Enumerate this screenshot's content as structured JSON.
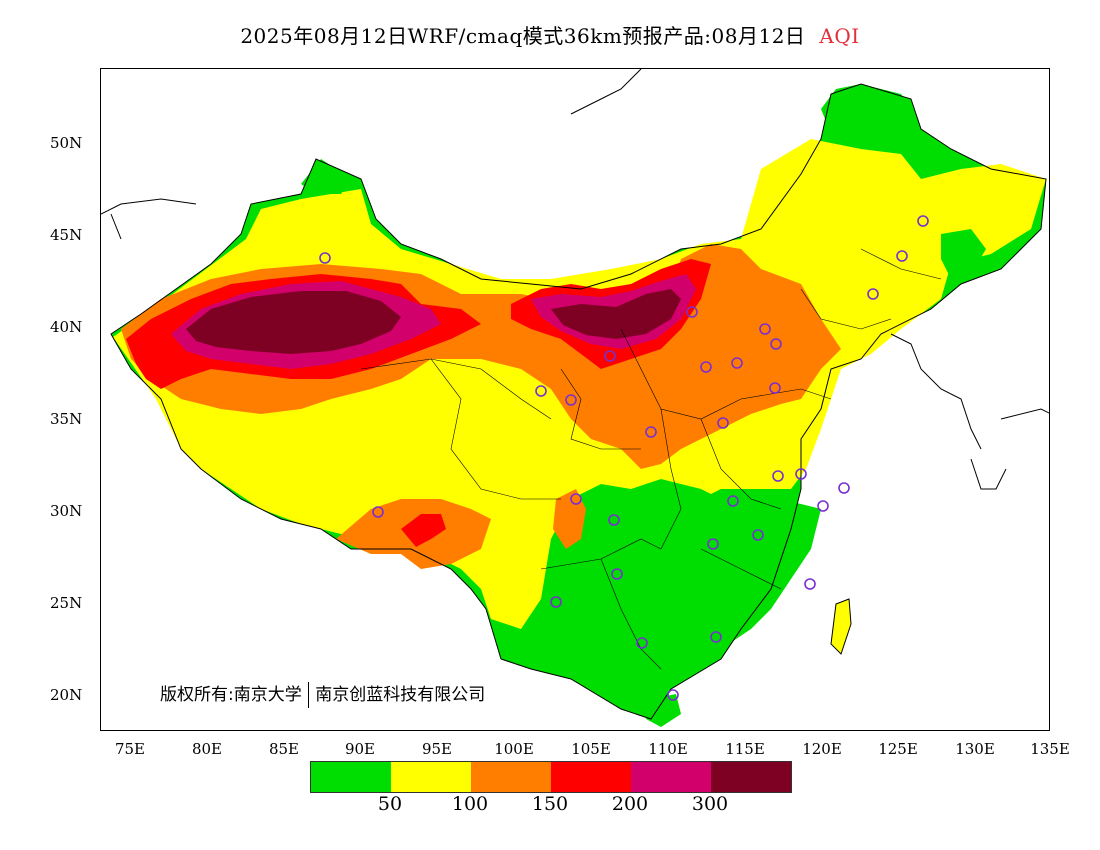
{
  "title": {
    "main": "2025年08月12日WRF/cmaq模式36km预报产品:08月12日",
    "variable": "AQI"
  },
  "map": {
    "lat_ticks": [
      "50N",
      "45N",
      "40N",
      "35N",
      "30N",
      "25N",
      "20N"
    ],
    "lon_ticks": [
      "75E",
      "80E",
      "85E",
      "90E",
      "95E",
      "100E",
      "105E",
      "110E",
      "115E",
      "120E",
      "125E",
      "130E",
      "135E"
    ],
    "credit_left": "版权所有:南京大学",
    "credit_right": "南京创蓝科技有限公司",
    "station_marker_color": "#7a2fd0"
  },
  "legend": {
    "colors": [
      "#00dd00",
      "#ffff00",
      "#ff7e00",
      "#ff0000",
      "#d1006a",
      "#7e0023"
    ],
    "ticks": [
      "50",
      "100",
      "150",
      "200",
      "300"
    ]
  }
}
